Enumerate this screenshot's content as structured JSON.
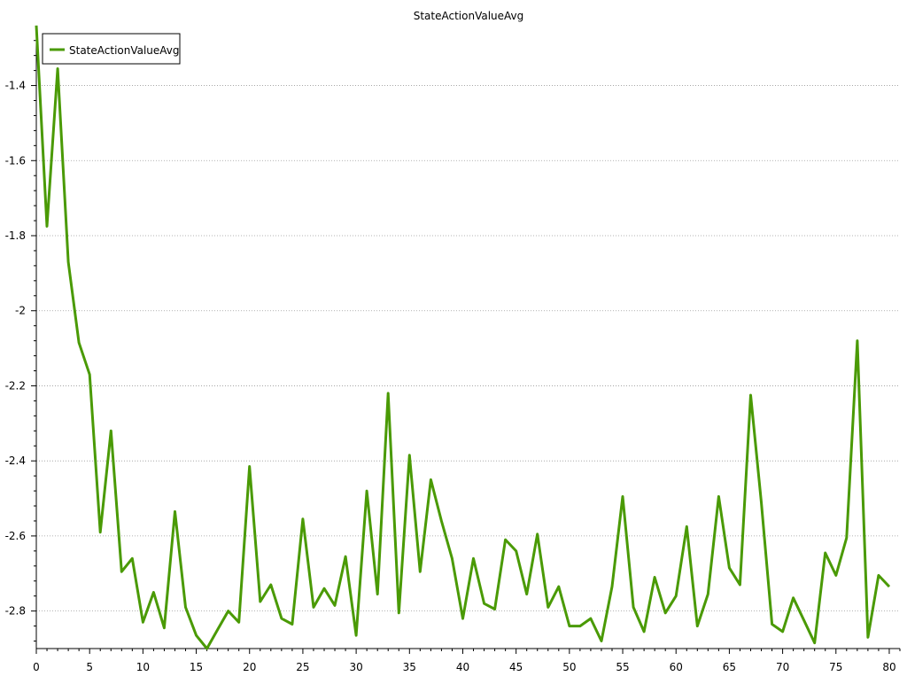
{
  "colors": {
    "series": "#4a9a05",
    "grid": "#9a9a9a",
    "axis": "#000000",
    "background": "#ffffff"
  },
  "chart_data": {
    "type": "line",
    "title": "StateActionValueAvg",
    "xlabel": "",
    "ylabel": "",
    "xlim": [
      0,
      81
    ],
    "ylim": [
      -2.9,
      -1.25
    ],
    "xticks": [
      0,
      5,
      10,
      15,
      20,
      25,
      30,
      35,
      40,
      45,
      50,
      55,
      60,
      65,
      70,
      75,
      80
    ],
    "yticks": [
      -2.8,
      -2.6,
      -2.4,
      -2.2,
      -2.0,
      -1.8,
      -1.6,
      -1.4
    ],
    "ytick_labels": [
      "-2.8",
      "-2.6",
      "-2.4",
      "-2.2",
      "-2",
      "-1.8",
      "-1.6",
      "-1.4"
    ],
    "grid": true,
    "legend_position": "top-left",
    "series": [
      {
        "name": "StateActionValueAvg",
        "x": [
          0,
          1,
          2,
          3,
          4,
          5,
          6,
          7,
          8,
          9,
          10,
          11,
          12,
          13,
          14,
          15,
          16,
          17,
          18,
          19,
          20,
          21,
          22,
          23,
          24,
          25,
          26,
          27,
          28,
          29,
          30,
          31,
          32,
          33,
          34,
          35,
          36,
          37,
          38,
          39,
          40,
          41,
          42,
          43,
          44,
          45,
          46,
          47,
          48,
          49,
          50,
          51,
          52,
          53,
          54,
          55,
          56,
          57,
          58,
          59,
          60,
          61,
          62,
          63,
          64,
          65,
          66,
          67,
          68,
          69,
          70,
          71,
          72,
          73,
          74,
          75,
          76,
          77,
          78,
          79,
          80
        ],
        "y": [
          -1.24,
          -1.775,
          -1.355,
          -1.87,
          -2.085,
          -2.17,
          -2.59,
          -2.32,
          -2.695,
          -2.66,
          -2.83,
          -2.75,
          -2.845,
          -2.535,
          -2.79,
          -2.865,
          -2.9,
          -2.85,
          -2.8,
          -2.83,
          -2.415,
          -2.775,
          -2.73,
          -2.82,
          -2.835,
          -2.555,
          -2.79,
          -2.74,
          -2.785,
          -2.655,
          -2.865,
          -2.48,
          -2.755,
          -2.22,
          -2.805,
          -2.385,
          -2.695,
          -2.45,
          -2.56,
          -2.66,
          -2.82,
          -2.66,
          -2.78,
          -2.795,
          -2.61,
          -2.64,
          -2.755,
          -2.595,
          -2.79,
          -2.735,
          -2.84,
          -2.84,
          -2.82,
          -2.88,
          -2.735,
          -2.495,
          -2.79,
          -2.855,
          -2.71,
          -2.805,
          -2.76,
          -2.575,
          -2.84,
          -2.755,
          -2.495,
          -2.685,
          -2.73,
          -2.225,
          -2.51,
          -2.835,
          -2.855,
          -2.765,
          -2.825,
          -2.885,
          -2.645,
          -2.705,
          -2.605,
          -2.08,
          -2.87,
          -2.705,
          -2.735
        ]
      }
    ]
  }
}
